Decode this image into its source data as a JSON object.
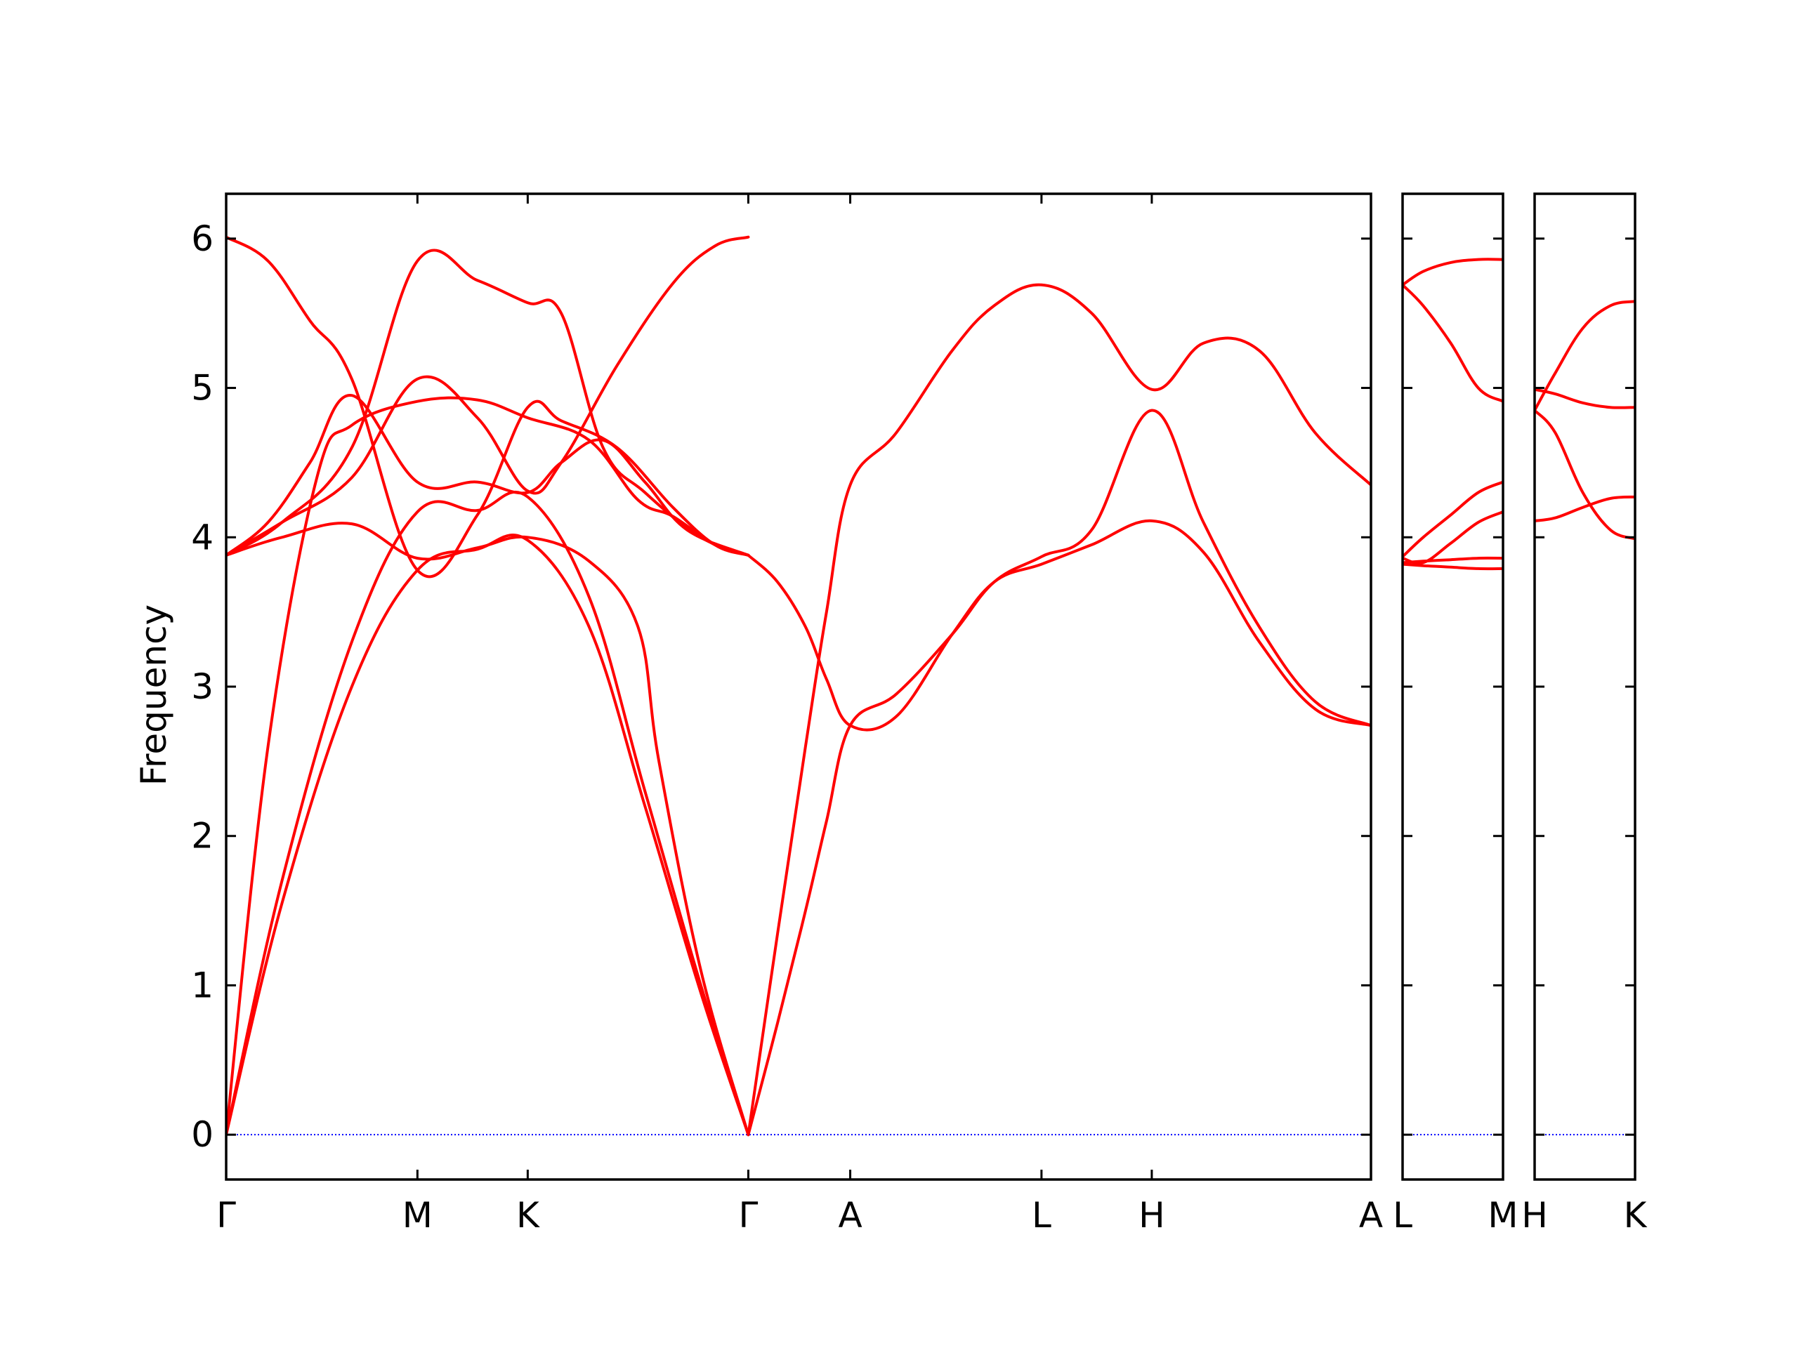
{
  "chart_data": {
    "type": "line",
    "title": "",
    "xlabel": "",
    "ylabel": "Frequency",
    "ylim": [
      -0.3,
      6.3
    ],
    "yticks": [
      0,
      1,
      2,
      3,
      4,
      5,
      6
    ],
    "ytick_labels": [
      "0",
      "1",
      "2",
      "3",
      "4",
      "5",
      "6"
    ],
    "grid": false,
    "legend": "none",
    "colors": {
      "bands": "#ff0000",
      "zero_line": "#0000ff",
      "axes": "#000000"
    },
    "panels": [
      {
        "id": "main",
        "x_range": [
          0,
          8.2
        ],
        "kpoints": [
          {
            "label": "Γ",
            "x": 0
          },
          {
            "label": "M",
            "x": 1.37
          },
          {
            "label": "K",
            "x": 2.16
          },
          {
            "label": "Γ",
            "x": 3.74
          },
          {
            "label": "A",
            "x": 4.47
          },
          {
            "label": "L",
            "x": 5.84
          },
          {
            "label": "H",
            "x": 6.63
          },
          {
            "label": "A",
            "x": 8.2
          }
        ],
        "series": [
          {
            "x": [
              0,
              0.4,
              0.9,
              1.37,
              1.8,
              2.16,
              2.6,
              3.0,
              3.4,
              3.74
            ],
            "values": [
              0,
              1.55,
              3.0,
              3.78,
              3.92,
              3.98,
              3.4,
              2.2,
              0.95,
              0
            ]
          },
          {
            "x": [
              0,
              0.4,
              0.9,
              1.37,
              1.8,
              2.16,
              2.6,
              3.0,
              3.4,
              3.74
            ],
            "values": [
              0,
              1.7,
              3.3,
              4.17,
              4.18,
              4.27,
              3.6,
              2.3,
              1.0,
              0
            ]
          },
          {
            "x": [
              0,
              0.3,
              0.65,
              0.9,
              1.37,
              1.8,
              2.16,
              2.6,
              2.95,
              3.2,
              3.5,
              3.74
            ],
            "values": [
              0,
              2.6,
              4.4,
              4.75,
              4.91,
              4.92,
              4.8,
              4.65,
              4.25,
              4.14,
              3.95,
              3.88
            ]
          },
          {
            "x": [
              0,
              0.4,
              0.9,
              1.37,
              1.8,
              2.16,
              2.6,
              2.95,
              3.1,
              3.4,
              3.74
            ],
            "values": [
              3.88,
              4.0,
              4.09,
              3.86,
              3.93,
              4.0,
              3.84,
              3.4,
              2.5,
              1.1,
              0
            ]
          },
          {
            "x": [
              0,
              0.3,
              0.6,
              0.9,
              1.37,
              1.8,
              2.16,
              2.4,
              2.7,
              3.0,
              3.3,
              3.74
            ],
            "values": [
              3.88,
              4.1,
              4.5,
              4.95,
              4.37,
              4.37,
              4.3,
              4.5,
              4.65,
              4.37,
              4.05,
              3.88
            ]
          },
          {
            "x": [
              0,
              0.3,
              0.6,
              0.9,
              1.37,
              1.8,
              2.16,
              2.4,
              2.8,
              3.2,
              3.5,
              3.74
            ],
            "values": [
              6.01,
              5.85,
              5.45,
              5.06,
              3.78,
              4.15,
              4.87,
              4.78,
              4.6,
              4.2,
              3.95,
              3.88
            ]
          },
          {
            "x": [
              0,
              0.4,
              0.9,
              1.37,
              1.8,
              2.16,
              2.4,
              2.7,
              3.0,
              3.4,
              3.74
            ],
            "values": [
              3.88,
              4.1,
              4.6,
              5.85,
              5.72,
              5.57,
              5.5,
              4.6,
              4.3,
              4.0,
              3.88
            ]
          },
          {
            "x": [
              0,
              0.4,
              0.9,
              1.37,
              1.8,
              2.16,
              2.4,
              2.8,
              3.2,
              3.5,
              3.74
            ],
            "values": [
              3.88,
              4.1,
              4.4,
              5.06,
              4.8,
              4.31,
              4.5,
              5.15,
              5.7,
              5.95,
              6.01
            ]
          },
          {
            "x": [
              3.74,
              3.95,
              4.15,
              4.3,
              4.47,
              4.8,
              5.2,
              5.5,
              5.84,
              6.2,
              6.63,
              7.0,
              7.4,
              7.8,
              8.2
            ],
            "values": [
              0,
              0.75,
              1.5,
              2.1,
              2.74,
              2.95,
              3.35,
              3.7,
              3.87,
              4.05,
              4.85,
              4.1,
              3.4,
              2.9,
              2.74
            ]
          },
          {
            "x": [
              3.74,
              3.95,
              4.15,
              4.3,
              4.47,
              4.8,
              5.2,
              5.5,
              5.84,
              6.2,
              6.63,
              7.0,
              7.4,
              7.8,
              8.2
            ],
            "values": [
              0,
              1.35,
              2.6,
              3.5,
              4.35,
              4.7,
              5.25,
              5.55,
              5.69,
              5.5,
              4.99,
              5.3,
              5.25,
              4.7,
              4.35
            ]
          },
          {
            "x": [
              3.74,
              3.95,
              4.15,
              4.3,
              4.47,
              4.8,
              5.2,
              5.5,
              5.84,
              6.2,
              6.63,
              7.0,
              7.4,
              7.8,
              8.2
            ],
            "values": [
              3.88,
              3.7,
              3.4,
              3.05,
              2.74,
              2.8,
              3.35,
              3.7,
              3.82,
              3.95,
              4.11,
              3.9,
              3.3,
              2.85,
              2.74
            ]
          }
        ]
      },
      {
        "id": "L-M",
        "x_range": [
          0,
          0.73
        ],
        "kpoints": [
          {
            "label": "L",
            "x": 0
          },
          {
            "label": "M",
            "x": 0.73
          }
        ],
        "series": [
          {
            "x": [
              0,
              0.15,
              0.35,
              0.55,
              0.73
            ],
            "values": [
              3.82,
              3.81,
              3.8,
              3.79,
              3.79
            ]
          },
          {
            "x": [
              0,
              0.15,
              0.35,
              0.55,
              0.73
            ],
            "values": [
              3.83,
              3.84,
              3.85,
              3.86,
              3.86
            ]
          },
          {
            "x": [
              0,
              0.15,
              0.35,
              0.55,
              0.73
            ],
            "values": [
              3.86,
              3.83,
              3.96,
              4.1,
              4.17
            ]
          },
          {
            "x": [
              0,
              0.15,
              0.35,
              0.55,
              0.73
            ],
            "values": [
              3.87,
              4.0,
              4.15,
              4.3,
              4.37
            ]
          },
          {
            "x": [
              0,
              0.15,
              0.35,
              0.55,
              0.73
            ],
            "values": [
              5.69,
              5.55,
              5.3,
              5.0,
              4.91
            ]
          },
          {
            "x": [
              0,
              0.15,
              0.35,
              0.55,
              0.73
            ],
            "values": [
              5.69,
              5.78,
              5.84,
              5.86,
              5.86
            ]
          }
        ]
      },
      {
        "id": "H-K",
        "x_range": [
          0,
          0.73
        ],
        "kpoints": [
          {
            "label": "H",
            "x": 0
          },
          {
            "label": "K",
            "x": 0.73
          }
        ],
        "series": [
          {
            "x": [
              0,
              0.15,
              0.35,
              0.55,
              0.73
            ],
            "values": [
              4.11,
              4.13,
              4.2,
              4.26,
              4.27
            ]
          },
          {
            "x": [
              0,
              0.15,
              0.35,
              0.55,
              0.73
            ],
            "values": [
              4.85,
              4.7,
              4.3,
              4.05,
              3.99
            ]
          },
          {
            "x": [
              0,
              0.15,
              0.35,
              0.55,
              0.73
            ],
            "values": [
              4.99,
              4.96,
              4.9,
              4.87,
              4.87
            ]
          },
          {
            "x": [
              0,
              0.15,
              0.35,
              0.55,
              0.73
            ],
            "values": [
              4.85,
              5.1,
              5.4,
              5.55,
              5.58
            ]
          }
        ]
      }
    ]
  }
}
